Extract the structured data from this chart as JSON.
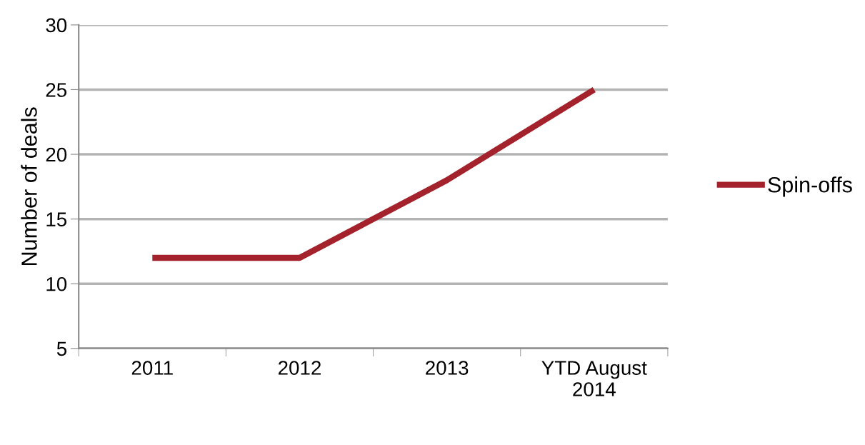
{
  "chart_data": {
    "type": "line",
    "ylabel": "Number of deals",
    "categories": [
      "2011",
      "2012",
      "2013",
      "YTD August\n2014"
    ],
    "series": [
      {
        "name": "Spin-offs",
        "color": "#a3222b",
        "values": [
          12,
          12,
          18,
          25
        ]
      }
    ],
    "ylim": [
      5,
      30
    ],
    "yticks": [
      5,
      10,
      15,
      20,
      25,
      30
    ],
    "grid": "y",
    "legend": "right",
    "marker": "none",
    "line_style": "solid"
  }
}
